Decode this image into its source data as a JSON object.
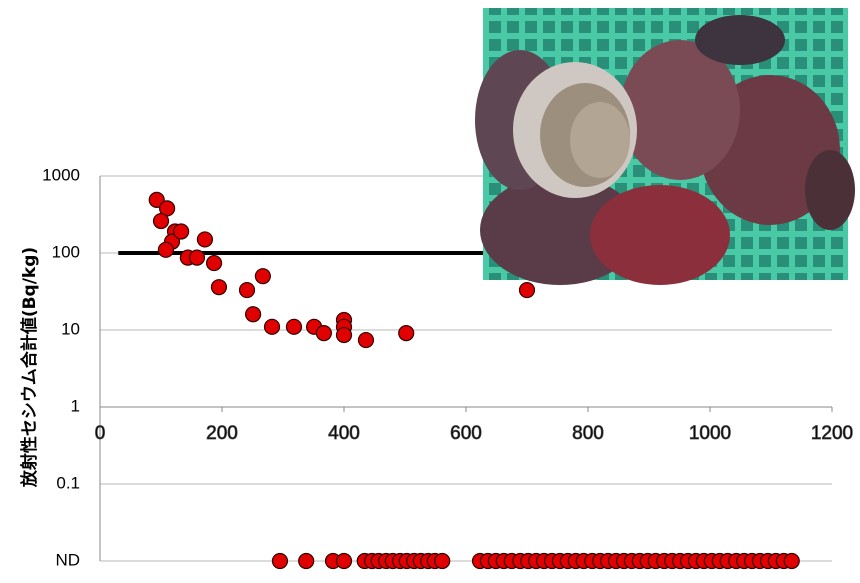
{
  "chart_data": {
    "type": "scatter",
    "y_label": "放射性セシウム合計値(Bq/kg)",
    "log_y": true,
    "grid": true,
    "xlim": [
      0,
      1200
    ],
    "xticks": [
      0,
      200,
      400,
      600,
      800,
      1000,
      1200
    ],
    "ylim": [
      0.01,
      1000
    ],
    "yticks": [
      1000,
      100,
      10,
      1,
      0.1,
      {
        "value": 0.01,
        "label": "ND"
      }
    ],
    "reference_line": {
      "value": 100,
      "x_start": 30,
      "color": "#000000"
    },
    "series": [
      {
        "color": "#e00000",
        "x": [
          93,
          110,
          100,
          123,
          118,
          133,
          108,
          172,
          144,
          159,
          187,
          195,
          241,
          267,
          251,
          282,
          318,
          351,
          367,
          400,
          400,
          400,
          436,
          502,
          700
        ],
        "values": [
          490,
          380,
          260,
          190,
          140,
          190,
          110,
          150,
          87,
          87,
          74,
          36,
          33,
          50,
          16,
          11,
          11,
          11,
          9.1,
          13.5,
          11,
          8.6,
          7.4,
          9.1,
          33
        ]
      },
      {
        "color": "#e00000",
        "not_detected": true,
        "x": [
          295,
          338,
          382,
          400,
          434,
          446,
          457,
          469,
          480,
          492,
          503,
          515,
          526,
          538,
          549,
          561,
          623,
          636,
          649,
          662,
          675,
          689,
          702,
          715,
          728,
          741,
          754,
          767,
          780,
          793,
          807,
          820,
          833,
          846,
          859,
          872,
          885,
          898,
          911,
          925,
          938,
          951,
          964,
          977,
          990,
          1003,
          1016,
          1029,
          1043,
          1056,
          1069,
          1082,
          1095,
          1108,
          1121,
          1134
        ]
      }
    ]
  }
}
